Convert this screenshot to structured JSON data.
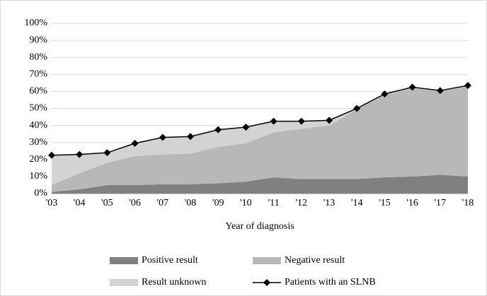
{
  "chart_data": {
    "type": "stacked_area_line",
    "x_label": "Year of diagnosis",
    "categories": [
      "'03",
      "'04",
      "'05",
      "'06",
      "'07",
      "'08",
      "'09",
      "'10",
      "'11",
      "'12",
      "'13",
      "'14",
      "'15",
      "'16",
      "'17",
      "'18"
    ],
    "series": [
      {
        "name": "Positive result",
        "color": "#808080",
        "kind": "area",
        "values": [
          1,
          2.5,
          5,
          5,
          5.5,
          5.5,
          6,
          7,
          9.5,
          8.5,
          8.5,
          8.5,
          9.5,
          10,
          11,
          10
        ]
      },
      {
        "name": "Negative result",
        "color": "#b8b8b8",
        "kind": "area",
        "values": [
          4,
          9.5,
          13,
          17,
          17.5,
          18,
          21.5,
          22.5,
          26.5,
          29.5,
          31.5,
          41,
          48.5,
          52,
          49,
          53
        ]
      },
      {
        "name": "Result unknown",
        "color": "#d3d3d3",
        "kind": "area",
        "values": [
          17.5,
          11,
          6,
          7.5,
          10,
          10,
          10,
          9.5,
          6.5,
          4.5,
          3,
          0.5,
          0.5,
          0.5,
          0.5,
          0.5
        ]
      },
      {
        "name": "Patients with an SLNB",
        "color": "#000000",
        "kind": "line",
        "values": [
          22.5,
          23,
          24,
          29.5,
          33,
          33.5,
          37.5,
          39,
          42.5,
          42.5,
          43,
          50,
          58.5,
          62.5,
          60.5,
          63.5
        ]
      }
    ],
    "ylim": [
      0,
      100
    ],
    "yticks": [
      {
        "value": 0,
        "label": "0%"
      },
      {
        "value": 10,
        "label": "10%"
      },
      {
        "value": 20,
        "label": "20%"
      },
      {
        "value": 30,
        "label": "30%"
      },
      {
        "value": 40,
        "label": "40%"
      },
      {
        "value": 50,
        "label": "50%"
      },
      {
        "value": 60,
        "label": "60%"
      },
      {
        "value": 70,
        "label": "70%"
      },
      {
        "value": 80,
        "label": "80%"
      },
      {
        "value": 90,
        "label": "90%"
      },
      {
        "value": 100,
        "label": "100%"
      }
    ],
    "grid": true,
    "legend": "bottom"
  }
}
